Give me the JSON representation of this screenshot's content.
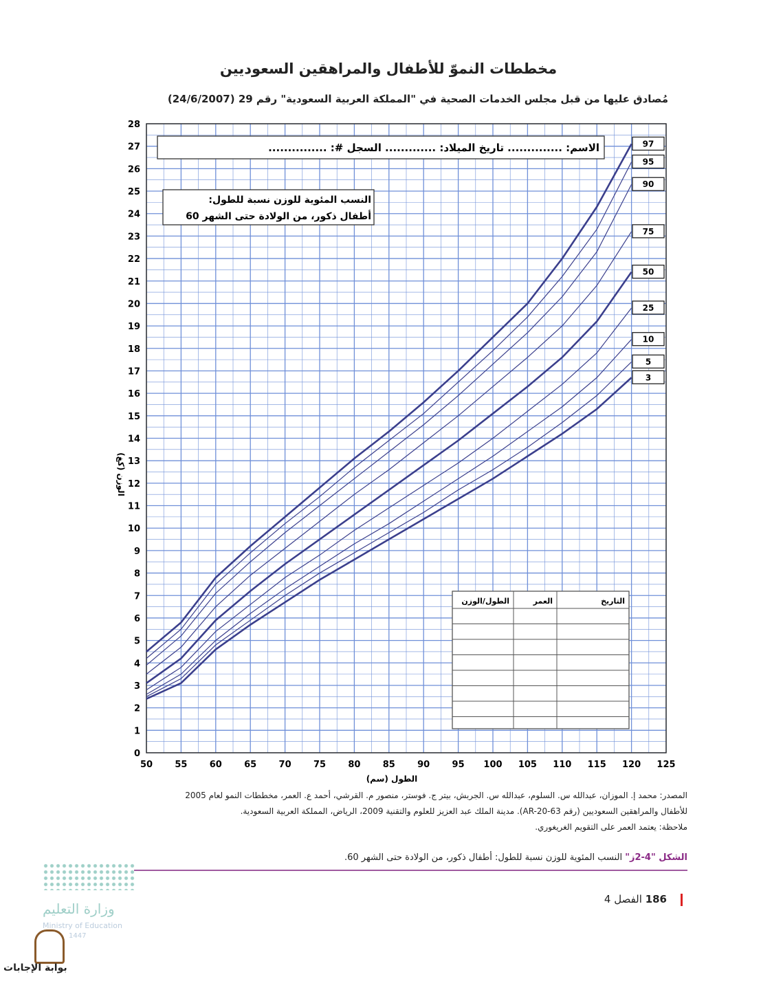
{
  "header": {
    "title": "مخططات النموّ للأطفال والمراهقين السعوديين",
    "subtitle": "مُصادق عليها من قبل مجلس الخدمات الصحية في \"المملكة العربية السعودية\" رقم 29 (24/6/2007)"
  },
  "chart_data": {
    "type": "line",
    "x_label": "الطول (سم)",
    "y_label": "الوزن (كغ)",
    "name_box": "الاسم: .............. تاريخ الميلاد: ............. السجل #: ...............",
    "chart_note": [
      "النسب المئوية للوزن نسبة للطول:",
      "أطفال ذكور، من الولادة حتى الشهر 60"
    ],
    "x": [
      50,
      55,
      60,
      65,
      70,
      75,
      80,
      85,
      90,
      95,
      100,
      105,
      110,
      115,
      120
    ],
    "series": [
      {
        "name": "97",
        "color": "#3b3f8c",
        "values": [
          4.5,
          5.8,
          7.8,
          9.2,
          10.5,
          11.8,
          13.1,
          14.3,
          15.6,
          17.0,
          18.5,
          20.0,
          22.0,
          24.3,
          27.1
        ]
      },
      {
        "name": "95",
        "color": "#3b3f8c",
        "values": [
          4.2,
          5.5,
          7.5,
          8.9,
          10.2,
          11.4,
          12.7,
          13.9,
          15.1,
          16.5,
          17.9,
          19.4,
          21.2,
          23.3,
          26.3
        ]
      },
      {
        "name": "90",
        "color": "#3b3f8c",
        "values": [
          3.9,
          5.2,
          7.1,
          8.5,
          9.8,
          11.0,
          12.2,
          13.4,
          14.6,
          15.9,
          17.3,
          18.7,
          20.3,
          22.3,
          25.3
        ]
      },
      {
        "name": "75",
        "color": "#3b3f8c",
        "values": [
          3.5,
          4.7,
          6.5,
          7.9,
          9.1,
          10.3,
          11.5,
          12.6,
          13.8,
          15.0,
          16.3,
          17.6,
          19.0,
          20.8,
          23.2
        ]
      },
      {
        "name": "50",
        "color": "#3b3f8c",
        "values": [
          3.1,
          4.2,
          5.9,
          7.2,
          8.4,
          9.5,
          10.6,
          11.7,
          12.8,
          13.9,
          15.1,
          16.3,
          17.6,
          19.2,
          21.4
        ]
      },
      {
        "name": "25",
        "color": "#3b3f8c",
        "values": [
          2.8,
          3.8,
          5.4,
          6.6,
          7.8,
          8.8,
          9.9,
          10.9,
          11.9,
          12.9,
          14.0,
          15.2,
          16.4,
          17.8,
          19.8
        ]
      },
      {
        "name": "10",
        "color": "#3b3f8c",
        "values": [
          2.6,
          3.5,
          5.0,
          6.2,
          7.3,
          8.3,
          9.3,
          10.2,
          11.2,
          12.2,
          13.2,
          14.3,
          15.4,
          16.7,
          18.4
        ]
      },
      {
        "name": "5",
        "color": "#3b3f8c",
        "values": [
          2.5,
          3.3,
          4.8,
          5.9,
          7.0,
          8.0,
          8.9,
          9.8,
          10.7,
          11.7,
          12.6,
          13.6,
          14.7,
          15.9,
          17.4
        ]
      },
      {
        "name": "3",
        "color": "#3b3f8c",
        "values": [
          2.4,
          3.1,
          4.6,
          5.7,
          6.7,
          7.7,
          8.6,
          9.5,
          10.4,
          11.3,
          12.2,
          13.2,
          14.2,
          15.3,
          16.7
        ]
      }
    ],
    "xlim": [
      50,
      125
    ],
    "ylim": [
      0,
      28
    ],
    "xticks": [
      50,
      55,
      60,
      65,
      70,
      75,
      80,
      85,
      90,
      95,
      100,
      105,
      110,
      115,
      120,
      125
    ],
    "yticks": [
      0,
      1,
      2,
      3,
      4,
      5,
      6,
      7,
      8,
      9,
      10,
      11,
      12,
      13,
      14,
      15,
      16,
      17,
      18,
      19,
      20,
      21,
      22,
      23,
      24,
      25,
      26,
      27,
      28
    ],
    "grid": true,
    "grid_color": "#6f8fd8"
  },
  "record_table": {
    "headers": [
      "التاريخ",
      "العمر",
      "الطول/الوزن"
    ]
  },
  "source": [
    "المصدر: محمد إ. الموزان، عبدالله س. السلوم، عبدالله س. الجربش، بيتر ج. فوستر، منصور م. القرشي، أحمد ع. العمر، مخططات النمو لعام 2005",
    "للأطفال والمراهقين السعوديين (رقم AR-20-63). مدينة الملك عبد العزيز للعلوم والتقنية 2009، الرياض، المملكة العربية السعودية."
  ],
  "note": "ملاحظة: يعتمد العمر على التقويم الغريغوري.",
  "figure": {
    "label": "الشكل \"4-2ز\"",
    "caption": "النسب المئوية للوزن نسبة للطول: أطفال ذكور، من الولادة حتى الشهر 60."
  },
  "page": {
    "number": "186",
    "chapter": "الفصل 4"
  },
  "logo": {
    "ar": "وزارة التعليم",
    "en": "Ministry of Education",
    "year": "1447",
    "watermark": "بوابة الإجابات"
  }
}
